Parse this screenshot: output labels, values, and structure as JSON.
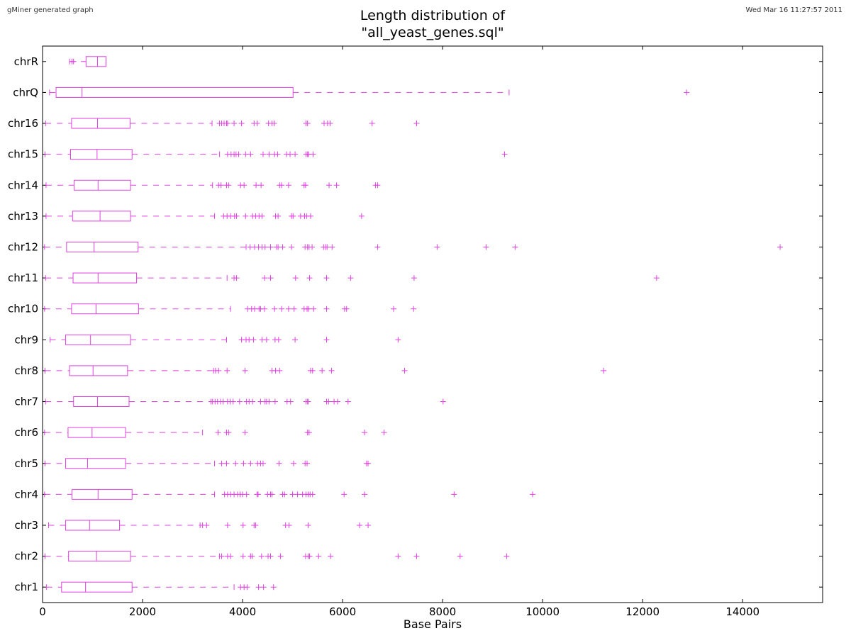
{
  "header": {
    "left_note": "gMiner generated graph",
    "right_note": "Wed Mar 16 11:27:57 2011"
  },
  "chart_data": {
    "type": "boxplot",
    "orientation": "horizontal",
    "title_lines": [
      "Length distribution of",
      "\"all_yeast_genes.sql\""
    ],
    "xlabel": "Base Pairs",
    "ylabel": "",
    "xlim": [
      0,
      15600
    ],
    "xticks": [
      0,
      2000,
      4000,
      6000,
      8000,
      10000,
      12000,
      14000
    ],
    "grid": false,
    "color": "#e040e0",
    "categories": [
      "chr1",
      "chr2",
      "chr3",
      "chr4",
      "chr5",
      "chr6",
      "chr7",
      "chr8",
      "chr9",
      "chr10",
      "chr11",
      "chr12",
      "chr13",
      "chr14",
      "chr15",
      "chr16",
      "chrQ",
      "chrR"
    ],
    "boxes": [
      {
        "name": "chr1",
        "wlo": 80,
        "q1": 380,
        "med": 860,
        "q3": 1790,
        "whi": 3830,
        "out": [
          3960,
          4030,
          4090,
          4320,
          4420,
          4620
        ]
      },
      {
        "name": "chr2",
        "wlo": 50,
        "q1": 520,
        "med": 1080,
        "q3": 1760,
        "whi": 3540,
        "out": [
          3580,
          3700,
          3760,
          4010,
          4160,
          4190,
          4380,
          4510,
          4560,
          4760,
          5260,
          5310,
          5340,
          5520,
          5760,
          7110,
          7480,
          8350,
          9280
        ]
      },
      {
        "name": "chr3",
        "wlo": 120,
        "q1": 460,
        "med": 940,
        "q3": 1540,
        "whi": 3150,
        "out": [
          3200,
          3280,
          3700,
          4010,
          4230,
          4260,
          4860,
          4930,
          5310,
          6340,
          6510
        ]
      },
      {
        "name": "chr4",
        "wlo": 40,
        "q1": 590,
        "med": 1110,
        "q3": 1790,
        "whi": 3440,
        "out": [
          3640,
          3700,
          3760,
          3830,
          3900,
          3950,
          4000,
          4080,
          4290,
          4310,
          4500,
          4560,
          4590,
          4800,
          4840,
          5000,
          5100,
          5200,
          5270,
          5310,
          5350,
          5400,
          6030,
          6440,
          8230,
          9800
        ]
      },
      {
        "name": "chr5",
        "wlo": 50,
        "q1": 460,
        "med": 900,
        "q3": 1660,
        "whi": 3440,
        "out": [
          3580,
          3680,
          3860,
          4020,
          4160,
          4300,
          4360,
          4410,
          4730,
          5020,
          5250,
          5290,
          6480,
          6510
        ]
      },
      {
        "name": "chr6",
        "wlo": 40,
        "q1": 510,
        "med": 990,
        "q3": 1660,
        "whi": 3200,
        "out": [
          3510,
          3680,
          3720,
          4050,
          5300,
          5330,
          6440,
          6830
        ]
      },
      {
        "name": "chr7",
        "wlo": 60,
        "q1": 620,
        "med": 1100,
        "q3": 1730,
        "whi": 3370,
        "out": [
          3400,
          3450,
          3500,
          3560,
          3610,
          3700,
          3750,
          3810,
          3940,
          4080,
          4130,
          4200,
          4360,
          4450,
          4480,
          4530,
          4650,
          4890,
          4960,
          5270,
          5300,
          5310,
          5680,
          5720,
          5830,
          5900,
          6110,
          8010
        ]
      },
      {
        "name": "chr8",
        "wlo": 50,
        "q1": 540,
        "med": 1010,
        "q3": 1700,
        "whi": 3420,
        "out": [
          3460,
          3520,
          3690,
          4050,
          4590,
          4660,
          4740,
          5360,
          5400,
          5590,
          5780,
          7240,
          11220
        ]
      },
      {
        "name": "chr9",
        "wlo": 150,
        "q1": 460,
        "med": 960,
        "q3": 1760,
        "whi": 3680,
        "out": [
          3980,
          4070,
          4130,
          4220,
          4390,
          4480,
          4650,
          4720,
          5050,
          5680,
          7110
        ]
      },
      {
        "name": "chr10",
        "wlo": 40,
        "q1": 580,
        "med": 1070,
        "q3": 1920,
        "whi": 3760,
        "out": [
          4100,
          4180,
          4240,
          4330,
          4360,
          4440,
          4640,
          4780,
          4920,
          5030,
          5230,
          5290,
          5320,
          5420,
          5680,
          6040,
          6080,
          7020,
          7420
        ]
      },
      {
        "name": "chr11",
        "wlo": 60,
        "q1": 610,
        "med": 1110,
        "q3": 1880,
        "whi": 3690,
        "out": [
          3830,
          3880,
          4440,
          4560,
          5060,
          5340,
          5680,
          6160,
          7430,
          12280
        ]
      },
      {
        "name": "chr12",
        "wlo": 40,
        "q1": 480,
        "med": 1030,
        "q3": 1910,
        "whi": 4070,
        "out": [
          4150,
          4240,
          4320,
          4390,
          4450,
          4560,
          4680,
          4710,
          4800,
          4980,
          5250,
          5300,
          5330,
          5390,
          5620,
          5660,
          5690,
          5790,
          6700,
          7890,
          8870,
          9450,
          14750
        ]
      },
      {
        "name": "chr13",
        "wlo": 70,
        "q1": 600,
        "med": 1150,
        "q3": 1760,
        "whi": 3440,
        "out": [
          3620,
          3690,
          3760,
          3840,
          3880,
          4060,
          4200,
          4260,
          4330,
          4390,
          4660,
          4710,
          4980,
          5010,
          5160,
          5240,
          5280,
          5360,
          6380
        ]
      },
      {
        "name": "chr14",
        "wlo": 70,
        "q1": 630,
        "med": 1110,
        "q3": 1760,
        "whi": 3400,
        "out": [
          3520,
          3570,
          3680,
          3720,
          3960,
          4030,
          4270,
          4370,
          4740,
          4780,
          4920,
          5230,
          5260,
          5730,
          5880,
          6660,
          6700
        ]
      },
      {
        "name": "chr15",
        "wlo": 50,
        "q1": 560,
        "med": 1090,
        "q3": 1790,
        "whi": 3540,
        "out": [
          3700,
          3770,
          3830,
          3870,
          3920,
          4060,
          4160,
          4410,
          4530,
          4640,
          4700,
          4880,
          4950,
          5050,
          5270,
          5300,
          5320,
          5410,
          9240
        ]
      },
      {
        "name": "chr16",
        "wlo": 60,
        "q1": 580,
        "med": 1100,
        "q3": 1750,
        "whi": 3390,
        "out": [
          3540,
          3580,
          3630,
          3680,
          3700,
          3830,
          3980,
          4230,
          4290,
          4520,
          4590,
          4630,
          5270,
          5300,
          5630,
          5700,
          5750,
          6590,
          7480
        ]
      },
      {
        "name": "chrQ",
        "wlo": 140,
        "q1": 270,
        "med": 790,
        "q3": 5010,
        "whi": 9330,
        "out": [
          12880
        ]
      },
      {
        "name": "chrR",
        "wlo": 540,
        "q1": 870,
        "med": 1100,
        "q3": 1270,
        "whi": 1270,
        "out": [
          590,
          620
        ]
      }
    ]
  }
}
